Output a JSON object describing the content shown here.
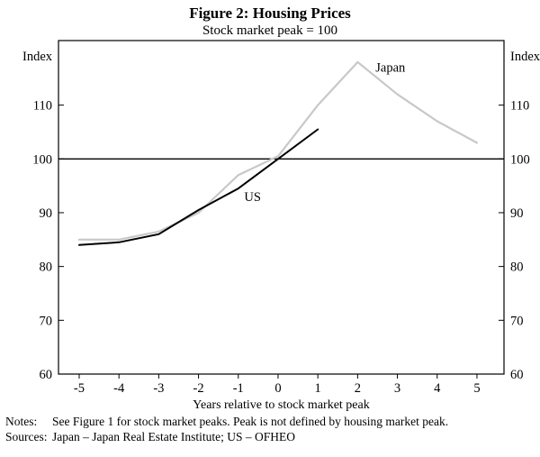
{
  "title": "Figure 2: Housing Prices",
  "subtitle": "Stock market peak = 100",
  "chart_data": {
    "type": "line",
    "x": [
      -5,
      -4,
      -3,
      -2,
      -1,
      0,
      1,
      2,
      3,
      4,
      5
    ],
    "series": [
      {
        "name": "Japan",
        "color": "#c8c8c8",
        "width": 2.2,
        "values": [
          85,
          85,
          86.5,
          90,
          97,
          100.5,
          110,
          118,
          112,
          107,
          103
        ]
      },
      {
        "name": "US",
        "color": "#000000",
        "width": 2,
        "values": [
          84,
          84.5,
          86,
          90.5,
          94.5,
          100,
          105.5
        ]
      }
    ],
    "xlabel": "Years relative to stock market peak",
    "ylabel_left": "Index",
    "ylabel_right": "Index",
    "xlim": [
      -5.52,
      5.68
    ],
    "ylim": [
      60,
      122
    ],
    "yticks": [
      60,
      70,
      80,
      90,
      100,
      110
    ],
    "xticks": [
      -5,
      -4,
      -3,
      -2,
      -1,
      0,
      1,
      2,
      3,
      4,
      5
    ],
    "reference_line": 100,
    "grid": false,
    "legend": "inline-annotations",
    "annotations": [
      {
        "text": "Japan",
        "x": 2.45,
        "y": 116.2
      },
      {
        "text": "US",
        "x": -0.85,
        "y": 92.2
      }
    ]
  },
  "footer": {
    "notes_label": "Notes:",
    "notes_text": "See Figure 1 for stock market peaks. Peak is not defined by housing market peak.",
    "sources_label": "Sources:",
    "sources_text": "Japan – Japan Real Estate Institute; US – OFHEO"
  }
}
